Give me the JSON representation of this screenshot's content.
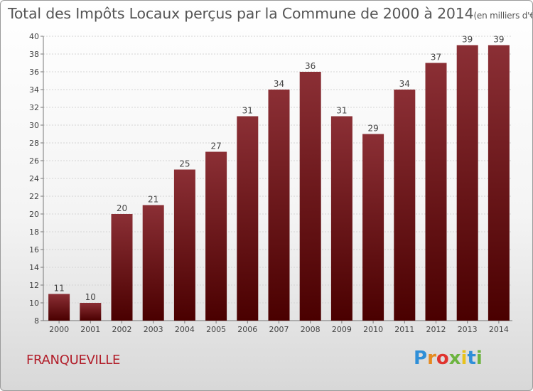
{
  "title_main": "Total des Impôts Locaux perçus par la Commune de 2000 à 2014",
  "title_unit": "(en milliers d'€)",
  "commune": "FRANQUEVILLE",
  "logo": {
    "letters": [
      "P",
      "r",
      "o",
      "x",
      "i",
      "t",
      "i"
    ]
  },
  "colors": {
    "bar_top": "#8b2f35",
    "bar_bottom": "#4a0000",
    "label": "#444444",
    "commune": "#b21e2a"
  },
  "chart_data": {
    "type": "bar",
    "title": "Total des Impôts Locaux perçus par la Commune de 2000 à 2014",
    "xlabel": "",
    "ylabel": "",
    "categories": [
      "2000",
      "2001",
      "2002",
      "2003",
      "2004",
      "2005",
      "2006",
      "2007",
      "2008",
      "2009",
      "2010",
      "2011",
      "2012",
      "2013",
      "2014"
    ],
    "values": [
      11,
      10,
      20,
      21,
      25,
      27,
      31,
      34,
      36,
      31,
      29,
      34,
      37,
      39,
      39
    ],
    "ylim": [
      8,
      40
    ],
    "yticks": [
      8,
      10,
      12,
      14,
      16,
      18,
      20,
      22,
      24,
      26,
      28,
      30,
      32,
      34,
      36,
      38,
      40
    ],
    "grid": true
  }
}
